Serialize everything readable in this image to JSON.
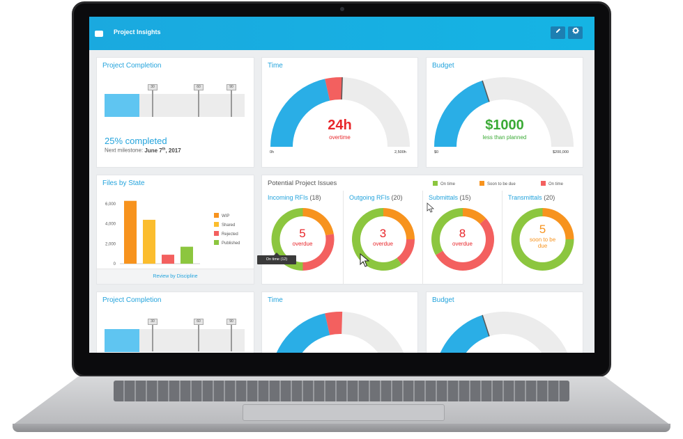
{
  "header": {
    "title": "Project Insights",
    "edit_icon": "pencil-icon",
    "settings_icon": "gear-icon"
  },
  "project_completion": {
    "title": "Project Completion",
    "progress_fraction": 0.25,
    "milestones": [
      "30",
      "60",
      "90"
    ],
    "status": "25% completed",
    "next_label": "Next milestone:",
    "next_date": "June 7",
    "next_sup": "th",
    "next_year": ", 2017"
  },
  "time": {
    "title": "Time",
    "value": "24h",
    "caption": "overtime",
    "min": "0h",
    "max": "2,500h",
    "fraction_used": 0.43,
    "fraction_over": 0.08
  },
  "budget": {
    "title": "Budget",
    "value": "$1000",
    "caption": "less than planned",
    "min": "$0",
    "max": "$200,000",
    "fraction_used": 0.4
  },
  "files_by_state": {
    "title": "Files by State",
    "yticks": [
      "6,000",
      "4,000",
      "2,000",
      "0"
    ],
    "legend": [
      "WIP",
      "Shared",
      "Rejected",
      "Published"
    ],
    "footer": "Review by Discipline"
  },
  "issues": {
    "title": "Potential Project Issues",
    "legend": [
      "On time",
      "Soon to be due",
      "On time"
    ],
    "columns": [
      {
        "name": "Incoming RFIs",
        "count": "(18)",
        "value": "5",
        "label": "overdue",
        "on_time": 9,
        "soon": 4,
        "overdue": 5
      },
      {
        "name": "Outgoing RFIs",
        "count": "(20)",
        "value": "3",
        "label": "overdue",
        "on_time": 12,
        "soon": 5,
        "overdue": 3
      },
      {
        "name": "Submittals",
        "count": "(15)",
        "value": "8",
        "label": "overdue",
        "on_time": 5,
        "soon": 2,
        "overdue": 8
      },
      {
        "name": "Transmittals",
        "count": "(20)",
        "value": "5",
        "label": "soon to be due",
        "on_time": 15,
        "soon": 5,
        "overdue": 0
      }
    ],
    "tooltip": "On time (12)"
  },
  "colors": {
    "blue": "#2aaee6",
    "red": "#f3605f",
    "green": "#8cc63f",
    "orange": "#f7931e",
    "yellow": "#fbbd2e",
    "grey": "#ececec"
  },
  "chart_data": {
    "type": "bar",
    "categories": [
      "WIP",
      "Shared",
      "Rejected",
      "Published"
    ],
    "values": [
      6300,
      4400,
      900,
      1700
    ],
    "ylim": [
      0,
      6000
    ],
    "colors": [
      "#f7931e",
      "#fbbd2e",
      "#f3605f",
      "#8cc63f"
    ],
    "legend_position": "right"
  },
  "bottom_row": {
    "completion_title": "Project Completion",
    "time_title": "Time",
    "budget_title": "Budget"
  }
}
